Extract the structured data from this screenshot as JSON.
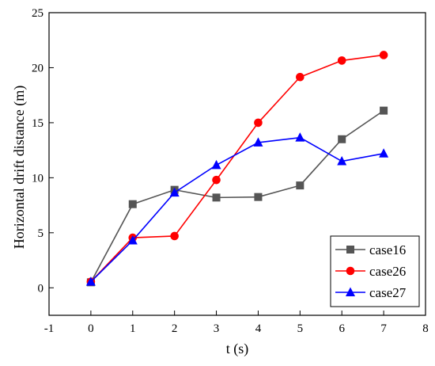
{
  "chart_data": {
    "type": "line",
    "title": "",
    "xlabel": "t (s)",
    "ylabel": "Horizontal drift distance (m)",
    "xlim": [
      -1,
      8
    ],
    "ylim": [
      -2.5,
      25
    ],
    "x_ticks": [
      -1,
      0,
      1,
      2,
      3,
      4,
      5,
      6,
      7,
      8
    ],
    "y_ticks": [
      0,
      5,
      10,
      15,
      20,
      25
    ],
    "grid": false,
    "legend_position": "bottom-right",
    "x": [
      0,
      1,
      2,
      3,
      4,
      5,
      6,
      7
    ],
    "series": [
      {
        "name": "case16",
        "color": "#555555",
        "marker": "square",
        "values": [
          0.5,
          7.6,
          8.9,
          8.2,
          8.25,
          9.3,
          13.5,
          16.1
        ]
      },
      {
        "name": "case26",
        "color": "#ff0000",
        "marker": "circle",
        "values": [
          0.55,
          4.55,
          4.7,
          9.8,
          15.0,
          19.15,
          20.65,
          21.15
        ]
      },
      {
        "name": "case27",
        "color": "#0000ff",
        "marker": "triangle",
        "values": [
          0.55,
          4.3,
          8.65,
          11.15,
          13.2,
          13.65,
          11.5,
          12.2
        ]
      }
    ]
  }
}
